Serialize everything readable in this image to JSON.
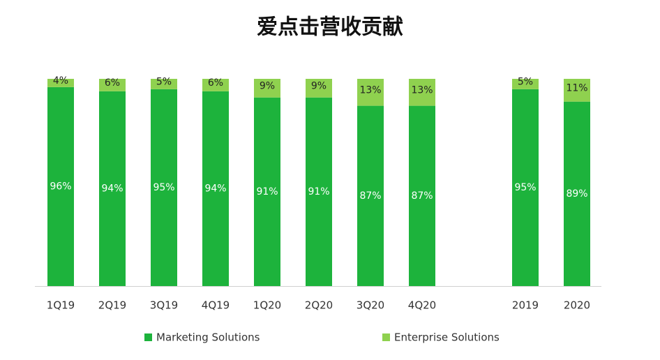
{
  "chart_data": {
    "type": "stacked_bar",
    "title": "爱点击营收贡献",
    "categories": [
      "1Q19",
      "2Q19",
      "3Q19",
      "4Q19",
      "1Q20",
      "2Q20",
      "3Q20",
      "4Q20",
      null,
      "2019",
      "2020"
    ],
    "series": [
      {
        "name": "Marketing Solutions",
        "color": "#1db33c",
        "values": [
          96,
          94,
          95,
          94,
          91,
          91,
          87,
          87,
          null,
          95,
          89
        ],
        "value_labels": [
          "96%",
          "94%",
          "95%",
          "94%",
          "91%",
          "91%",
          "87%",
          "87%",
          null,
          "95%",
          "89%"
        ]
      },
      {
        "name": "Enterprise Solutions",
        "color": "#8fd14f",
        "values": [
          4,
          6,
          5,
          6,
          9,
          9,
          13,
          13,
          null,
          5,
          11
        ],
        "value_labels": [
          "4%",
          "6%",
          "5%",
          "6%",
          "9%",
          "9%",
          "13%",
          "13%",
          null,
          "5%",
          "11%"
        ]
      }
    ],
    "ylim": [
      0,
      100
    ]
  }
}
